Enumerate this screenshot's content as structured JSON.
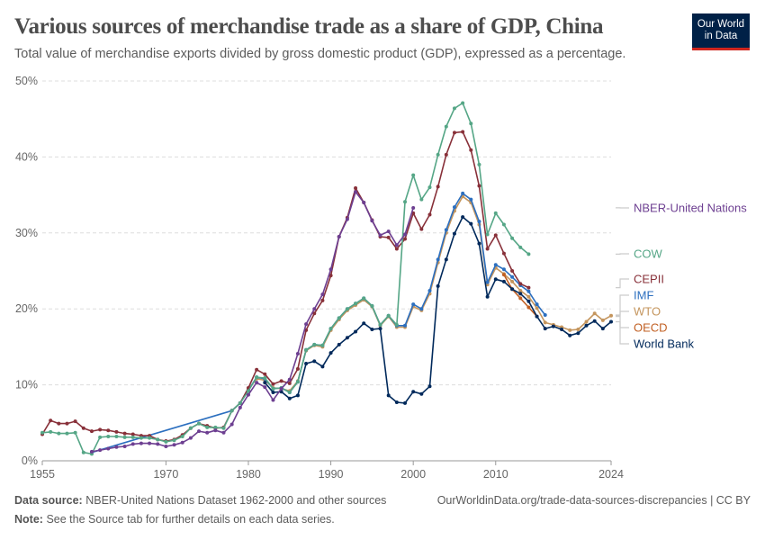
{
  "header": {
    "title": "Various sources of merchandise trade as a share of GDP, China",
    "subtitle": "Total value of merchandise exports divided by gross domestic product (GDP), expressed as a percentage.",
    "logo_line1": "Our World",
    "logo_line2": "in Data"
  },
  "footer": {
    "source_label": "Data source:",
    "source_text": "NBER-United Nations Dataset 1962-2000 and other sources",
    "url": "OurWorldinData.org/trade-data-sources-discrepancies | CC BY",
    "note_label": "Note:",
    "note_text": "See the Source tab for further details on each data series."
  },
  "chart_data": {
    "type": "line",
    "title": "Various sources of merchandise trade as a share of GDP, China",
    "xlim": [
      1955,
      2024
    ],
    "ylim": [
      0,
      50
    ],
    "x_ticks": [
      "1955",
      "1970",
      "1980",
      "1990",
      "2000",
      "2010",
      "2024"
    ],
    "y_ticks": [
      "0%",
      "10%",
      "20%",
      "30%",
      "40%",
      "50%"
    ],
    "grid": "horizontal dashed",
    "legend": "right, inline labels",
    "series": [
      {
        "name": "NBER-United Nations",
        "color": "#6d3f91",
        "points": [
          [
            1961,
            1.2
          ],
          [
            1962,
            1.4
          ],
          [
            1963,
            1.6
          ],
          [
            1964,
            1.8
          ],
          [
            1965,
            1.9
          ],
          [
            1966,
            2.2
          ],
          [
            1967,
            2.3
          ],
          [
            1968,
            2.3
          ],
          [
            1969,
            2.2
          ],
          [
            1970,
            1.9
          ],
          [
            1971,
            2.1
          ],
          [
            1972,
            2.4
          ],
          [
            1973,
            3.0
          ],
          [
            1974,
            3.9
          ],
          [
            1975,
            3.7
          ],
          [
            1976,
            4.0
          ],
          [
            1977,
            3.7
          ],
          [
            1978,
            4.8
          ],
          [
            1979,
            7.0
          ],
          [
            1980,
            8.7
          ],
          [
            1981,
            10.3
          ],
          [
            1982,
            9.7
          ],
          [
            1983,
            8.0
          ],
          [
            1984,
            9.5
          ],
          [
            1985,
            10.7
          ],
          [
            1986,
            14.1
          ],
          [
            1987,
            18.0
          ],
          [
            1988,
            20.0
          ],
          [
            1989,
            21.9
          ],
          [
            1990,
            25.2
          ],
          [
            1991,
            29.5
          ],
          [
            1992,
            31.8
          ],
          [
            1993,
            35.4
          ],
          [
            1994,
            34.0
          ],
          [
            1995,
            31.6
          ],
          [
            1996,
            29.7
          ],
          [
            1997,
            30.2
          ],
          [
            1998,
            28.4
          ],
          [
            1999,
            29.8
          ],
          [
            2000,
            33.3
          ]
        ]
      },
      {
        "name": "COW",
        "color": "#55a686",
        "points": [
          [
            1955,
            3.7
          ],
          [
            1956,
            3.8
          ],
          [
            1957,
            3.6
          ],
          [
            1958,
            3.6
          ],
          [
            1959,
            3.7
          ],
          [
            1960,
            1.1
          ],
          [
            1961,
            0.9
          ],
          [
            1962,
            3.1
          ],
          [
            1963,
            3.2
          ],
          [
            1964,
            3.2
          ],
          [
            1965,
            3.1
          ],
          [
            1966,
            3.1
          ],
          [
            1967,
            3.0
          ],
          [
            1968,
            3.0
          ],
          [
            1969,
            2.8
          ],
          [
            1970,
            2.5
          ],
          [
            1971,
            2.7
          ],
          [
            1972,
            3.2
          ],
          [
            1973,
            4.3
          ],
          [
            1974,
            4.9
          ],
          [
            1975,
            4.4
          ],
          [
            1976,
            4.4
          ],
          [
            1977,
            4.3
          ],
          [
            1978,
            6.6
          ],
          [
            1979,
            7.6
          ],
          [
            1980,
            9.2
          ],
          [
            1981,
            11.0
          ],
          [
            1982,
            10.9
          ],
          [
            1983,
            9.5
          ],
          [
            1984,
            9.6
          ],
          [
            1985,
            9.0
          ],
          [
            1986,
            10.4
          ],
          [
            1987,
            14.6
          ],
          [
            1988,
            15.3
          ],
          [
            1989,
            15.2
          ],
          [
            1990,
            17.4
          ],
          [
            1991,
            18.8
          ],
          [
            1992,
            20.0
          ],
          [
            1993,
            20.7
          ],
          [
            1994,
            21.4
          ],
          [
            1995,
            20.4
          ],
          [
            1996,
            17.9
          ],
          [
            1997,
            19.1
          ],
          [
            1998,
            17.9
          ],
          [
            1999,
            34.1
          ],
          [
            2000,
            37.6
          ],
          [
            2001,
            34.4
          ],
          [
            2002,
            36.0
          ],
          [
            2003,
            40.3
          ],
          [
            2004,
            44.0
          ],
          [
            2005,
            46.4
          ],
          [
            2006,
            47.1
          ],
          [
            2007,
            44.4
          ],
          [
            2008,
            39.0
          ],
          [
            2009,
            29.8
          ],
          [
            2010,
            32.6
          ],
          [
            2011,
            31.1
          ],
          [
            2012,
            29.3
          ],
          [
            2013,
            28.1
          ],
          [
            2014,
            27.2
          ]
        ]
      },
      {
        "name": "CEPII",
        "color": "#883039",
        "points": [
          [
            1955,
            3.5
          ],
          [
            1956,
            5.3
          ],
          [
            1957,
            4.9
          ],
          [
            1958,
            4.9
          ],
          [
            1959,
            5.2
          ],
          [
            1960,
            4.3
          ],
          [
            1961,
            3.9
          ],
          [
            1962,
            4.1
          ],
          [
            1963,
            4.0
          ],
          [
            1964,
            3.8
          ],
          [
            1965,
            3.6
          ],
          [
            1966,
            3.5
          ],
          [
            1967,
            3.3
          ],
          [
            1968,
            3.3
          ],
          [
            1969,
            2.8
          ],
          [
            1970,
            2.6
          ],
          [
            1971,
            2.8
          ],
          [
            1972,
            3.4
          ],
          [
            1973,
            4.3
          ],
          [
            1974,
            4.9
          ],
          [
            1975,
            4.6
          ],
          [
            1976,
            4.3
          ],
          [
            1977,
            4.4
          ],
          [
            1978,
            6.6
          ],
          [
            1979,
            7.6
          ],
          [
            1980,
            9.6
          ],
          [
            1981,
            12.0
          ],
          [
            1982,
            11.4
          ],
          [
            1983,
            10.1
          ],
          [
            1984,
            10.5
          ],
          [
            1985,
            10.2
          ],
          [
            1986,
            12.1
          ],
          [
            1987,
            17.2
          ],
          [
            1988,
            19.4
          ],
          [
            1989,
            21.1
          ],
          [
            1990,
            24.4
          ],
          [
            1991,
            29.5
          ],
          [
            1992,
            32.0
          ],
          [
            1993,
            35.9
          ],
          [
            1994,
            34.0
          ],
          [
            1995,
            31.7
          ],
          [
            1996,
            29.5
          ],
          [
            1997,
            29.4
          ],
          [
            1998,
            27.9
          ],
          [
            1999,
            29.2
          ],
          [
            2000,
            32.6
          ],
          [
            2001,
            30.5
          ],
          [
            2002,
            32.4
          ],
          [
            2003,
            36.1
          ],
          [
            2004,
            40.3
          ],
          [
            2005,
            43.2
          ],
          [
            2006,
            43.3
          ],
          [
            2007,
            40.9
          ],
          [
            2008,
            36.2
          ],
          [
            2009,
            27.9
          ],
          [
            2010,
            29.7
          ],
          [
            2011,
            27.3
          ],
          [
            2012,
            25.0
          ],
          [
            2013,
            23.3
          ],
          [
            2014,
            22.8
          ]
        ]
      },
      {
        "name": "WTO",
        "color": "#c4955d",
        "points": [
          [
            1980,
            9.4
          ],
          [
            1981,
            10.8
          ],
          [
            1982,
            10.6
          ],
          [
            1983,
            9.6
          ],
          [
            1984,
            9.5
          ],
          [
            1985,
            9.2
          ],
          [
            1986,
            10.5
          ],
          [
            1987,
            14.5
          ],
          [
            1988,
            15.2
          ],
          [
            1989,
            15.0
          ],
          [
            1990,
            17.2
          ],
          [
            1991,
            18.6
          ],
          [
            1992,
            19.8
          ],
          [
            1993,
            20.5
          ],
          [
            1994,
            21.2
          ],
          [
            1995,
            20.3
          ],
          [
            1996,
            17.8
          ],
          [
            1997,
            19.0
          ],
          [
            1998,
            17.6
          ],
          [
            1999,
            17.6
          ],
          [
            2000,
            20.3
          ],
          [
            2001,
            19.8
          ],
          [
            2002,
            22.0
          ],
          [
            2003,
            26.1
          ],
          [
            2004,
            30.0
          ],
          [
            2005,
            32.9
          ],
          [
            2006,
            34.8
          ],
          [
            2007,
            34.0
          ],
          [
            2008,
            31.1
          ],
          [
            2009,
            23.2
          ],
          [
            2010,
            25.4
          ],
          [
            2011,
            24.6
          ],
          [
            2012,
            23.6
          ],
          [
            2013,
            22.4
          ],
          [
            2014,
            21.6
          ],
          [
            2015,
            20.1
          ],
          [
            2016,
            18.2
          ],
          [
            2017,
            17.9
          ],
          [
            2018,
            17.6
          ],
          [
            2019,
            17.2
          ],
          [
            2020,
            17.3
          ],
          [
            2021,
            18.3
          ],
          [
            2022,
            19.4
          ],
          [
            2023,
            18.5
          ],
          [
            2024,
            19.1
          ]
        ]
      },
      {
        "name": "IMF",
        "color": "#2c6fbf",
        "points": [
          [
            1961,
            1.1
          ],
          [
            1978,
            6.6
          ],
          [
            1979,
            7.6
          ],
          [
            1980,
            9.3
          ],
          [
            1981,
            11.0
          ],
          [
            1982,
            10.8
          ],
          [
            1983,
            9.5
          ],
          [
            1984,
            9.6
          ],
          [
            1985,
            9.0
          ],
          [
            1986,
            10.4
          ],
          [
            1987,
            14.6
          ],
          [
            1988,
            15.3
          ],
          [
            1989,
            15.2
          ],
          [
            1990,
            17.4
          ],
          [
            1991,
            18.8
          ],
          [
            1992,
            20.0
          ],
          [
            1993,
            20.7
          ],
          [
            1994,
            21.4
          ],
          [
            1995,
            20.4
          ],
          [
            1996,
            17.9
          ],
          [
            1997,
            19.1
          ],
          [
            1998,
            17.8
          ],
          [
            1999,
            17.8
          ],
          [
            2000,
            20.6
          ],
          [
            2001,
            20.0
          ],
          [
            2002,
            22.4
          ],
          [
            2003,
            26.5
          ],
          [
            2004,
            30.4
          ],
          [
            2005,
            33.4
          ],
          [
            2006,
            35.2
          ],
          [
            2007,
            34.4
          ],
          [
            2008,
            31.5
          ],
          [
            2009,
            23.5
          ],
          [
            2010,
            25.8
          ],
          [
            2011,
            25.2
          ],
          [
            2012,
            24.2
          ],
          [
            2013,
            23.1
          ],
          [
            2014,
            22.3
          ],
          [
            2015,
            20.6
          ],
          [
            2016,
            19.2
          ]
        ]
      },
      {
        "name": "OECD",
        "color": "#c15f22",
        "points": [
          [
            2011,
            24.5
          ],
          [
            2012,
            22.6
          ],
          [
            2013,
            21.4
          ],
          [
            2014,
            20.2
          ],
          [
            2015,
            19.0
          ]
        ]
      },
      {
        "name": "World Bank",
        "color": "#00295b",
        "points": [
          [
            1982,
            10.3
          ],
          [
            1983,
            9.0
          ],
          [
            1984,
            9.1
          ],
          [
            1985,
            8.2
          ],
          [
            1986,
            8.6
          ],
          [
            1987,
            12.8
          ],
          [
            1988,
            13.1
          ],
          [
            1989,
            12.4
          ],
          [
            1990,
            14.2
          ],
          [
            1991,
            15.3
          ],
          [
            1992,
            16.2
          ],
          [
            1993,
            17.0
          ],
          [
            1994,
            18.1
          ],
          [
            1995,
            17.3
          ],
          [
            1996,
            17.4
          ],
          [
            1997,
            8.6
          ],
          [
            1998,
            7.7
          ],
          [
            1999,
            7.6
          ],
          [
            2000,
            9.1
          ],
          [
            2001,
            8.8
          ],
          [
            2002,
            9.8
          ],
          [
            2003,
            23.0
          ],
          [
            2004,
            26.5
          ],
          [
            2005,
            29.9
          ],
          [
            2006,
            32.1
          ],
          [
            2007,
            31.2
          ],
          [
            2008,
            28.6
          ],
          [
            2009,
            21.6
          ],
          [
            2010,
            23.9
          ],
          [
            2011,
            23.6
          ],
          [
            2012,
            22.6
          ],
          [
            2013,
            22.0
          ],
          [
            2014,
            21.0
          ],
          [
            2015,
            19.0
          ],
          [
            2016,
            17.4
          ],
          [
            2017,
            17.7
          ],
          [
            2018,
            17.3
          ],
          [
            2019,
            16.5
          ],
          [
            2020,
            16.8
          ],
          [
            2021,
            17.8
          ],
          [
            2022,
            18.4
          ],
          [
            2023,
            17.4
          ],
          [
            2024,
            18.3
          ]
        ]
      }
    ]
  }
}
